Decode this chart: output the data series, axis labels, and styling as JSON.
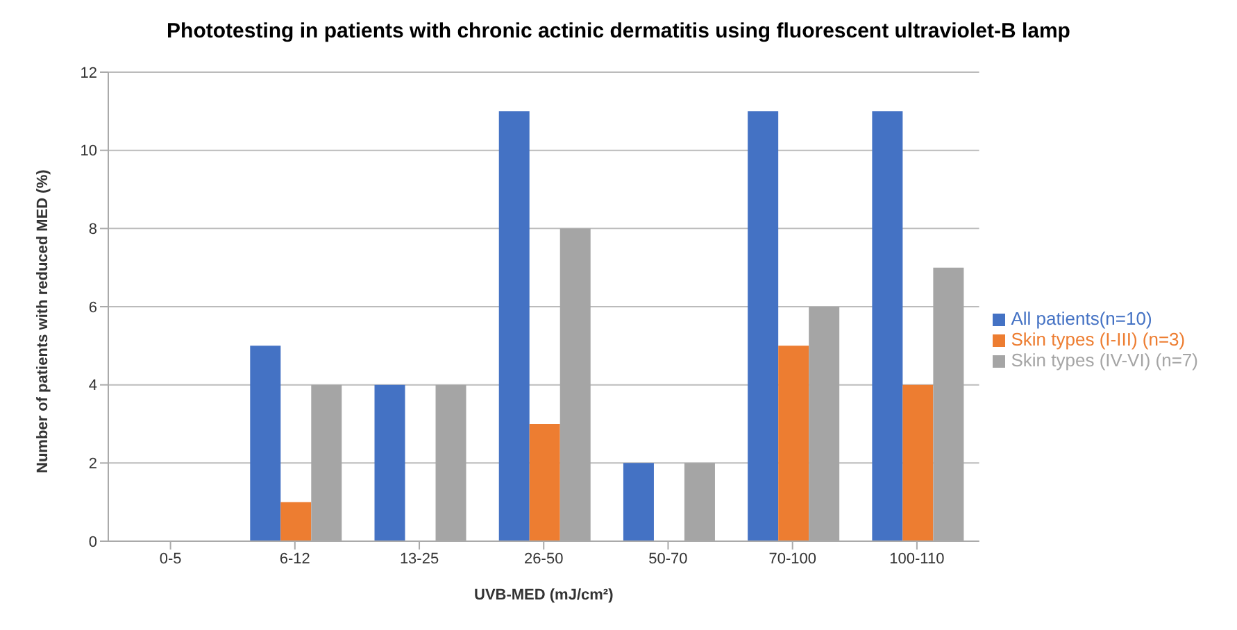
{
  "chart_data": {
    "type": "bar",
    "title": "Phototesting in patients with chronic actinic dermatitis using fluorescent ultraviolet-B lamp",
    "xlabel": "UVB-MED  (mJ/cm²)",
    "ylabel": "Number of  patients  with reduced MED  (%)",
    "categories": [
      "0-5",
      "6-12",
      "13-25",
      "26-50",
      "50-70",
      "70-100",
      "100-110"
    ],
    "series": [
      {
        "name": "All patients(n=10)",
        "color": "#4472c4",
        "values": [
          0,
          5,
          4,
          11,
          2,
          11,
          11
        ]
      },
      {
        "name": "Skin types (I-III) (n=3)",
        "color": "#ed7d31",
        "values": [
          0,
          1,
          0,
          3,
          0,
          5,
          4
        ]
      },
      {
        "name": "Skin types (IV-VI) (n=7)",
        "color": "#a5a5a5",
        "values": [
          0,
          4,
          4,
          8,
          2,
          6,
          7
        ]
      }
    ],
    "ylim": [
      0,
      12
    ],
    "yticks": [
      0,
      2,
      4,
      6,
      8,
      10,
      12
    ],
    "grid": "y",
    "legend": "right"
  }
}
